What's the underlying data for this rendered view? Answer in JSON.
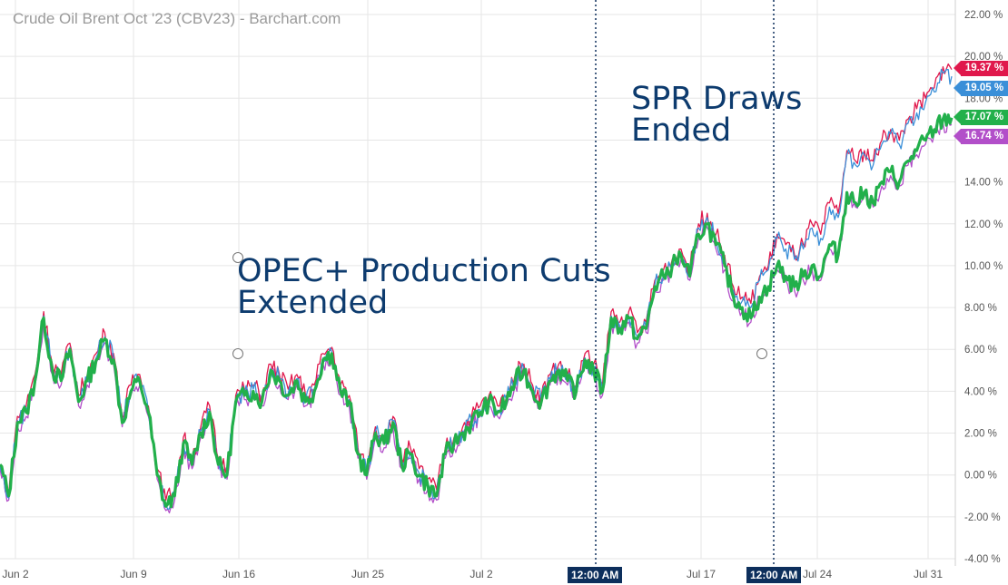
{
  "title": "Crude Oil Brent Oct '23 (CBV23) - Barchart.com",
  "annotations": {
    "opec": [
      "OPEC+ Production Cuts",
      "Extended"
    ],
    "spr": [
      "SPR Draws",
      "Ended"
    ]
  },
  "vline_labels": [
    "12:00 AM",
    "12:00 AM"
  ],
  "colors": {
    "series_red": "#e0184c",
    "series_blue": "#3a8fd8",
    "series_green": "#22b04b",
    "series_purple": "#b24fc9",
    "annotation_text": "#0d3b6e",
    "vline": "#0d2f5c",
    "grid": "#e6e6e6"
  },
  "chart_data": {
    "type": "line",
    "title": "Crude Oil Brent Oct '23 (CBV23) - Barchart.com",
    "x_tick_labels": [
      "Jun 2",
      "Jun 9",
      "Jun 16",
      "Jun 25",
      "Jul 2",
      "Jul 17",
      "Jul 24",
      "Jul 31"
    ],
    "y_tick_labels": [
      "-4.00 %",
      "-2.00 %",
      "0.00 %",
      "2.00 %",
      "4.00 %",
      "6.00 %",
      "8.00 %",
      "10.00 %",
      "12.00 %",
      "14.00 %",
      "16.00 %",
      "18.00 %",
      "20.00 %",
      "22.00 %"
    ],
    "ylim": [
      -4,
      22
    ],
    "y_unit": "%",
    "grid": true,
    "last_values": [
      {
        "label": "19.37 %",
        "value": 19.37,
        "color": "#e0184c"
      },
      {
        "label": "19.05 %",
        "value": 19.05,
        "color": "#3a8fd8"
      },
      {
        "label": "17.07 %",
        "value": 17.07,
        "color": "#22b04b"
      },
      {
        "label": "16.74 %",
        "value": 16.74,
        "color": "#b24fc9"
      }
    ],
    "series": [
      {
        "color": "#22b04b",
        "values": [
          0.5,
          -1.0,
          2.5,
          3.0,
          4.5,
          7.5,
          5.0,
          4.5,
          6.0,
          3.5,
          4.5,
          5.5,
          6.5,
          5.5,
          2.5,
          4.0,
          4.5,
          3.0,
          0.0,
          -1.5,
          -1.0,
          1.5,
          0.5,
          2.0,
          3.0,
          0.5,
          0.0,
          3.5,
          3.8,
          4.0,
          3.5,
          5.0,
          4.5,
          3.8,
          4.5,
          3.5,
          4.0,
          5.5,
          5.8,
          4.0,
          3.5,
          1.0,
          0.0,
          2.0,
          1.5,
          2.5,
          0.5,
          1.0,
          0.0,
          -0.5,
          -1.0,
          1.0,
          1.5,
          2.0,
          2.5,
          3.0,
          3.5,
          3.0,
          3.5,
          4.5,
          5.0,
          4.0,
          3.5,
          4.5,
          5.0,
          4.5,
          4.0,
          5.5,
          5.0,
          4.0,
          7.5,
          7.0,
          7.5,
          6.5,
          7.0,
          9.0,
          9.5,
          10.0,
          10.5,
          9.5,
          11.5,
          12.0,
          11.0,
          10.0,
          8.5,
          8.0,
          7.5,
          8.5,
          9.0,
          10.0,
          9.5,
          9.0,
          9.5,
          10.0,
          9.5,
          11.0,
          10.5,
          13.5,
          13.0,
          13.5,
          13.0,
          14.0,
          14.5,
          14.0,
          15.0,
          15.5,
          16.0,
          16.5,
          17.0,
          17.07
        ]
      },
      {
        "color": "#e0184c",
        "values": [
          0.5,
          -1.0,
          2.8,
          3.3,
          4.8,
          7.8,
          5.3,
          4.8,
          6.3,
          3.8,
          4.8,
          5.8,
          6.8,
          5.8,
          2.8,
          4.3,
          4.8,
          3.3,
          0.3,
          -1.2,
          -0.7,
          1.8,
          0.8,
          2.3,
          3.3,
          0.8,
          0.3,
          3.8,
          4.1,
          4.3,
          3.8,
          5.3,
          4.8,
          4.1,
          4.8,
          3.8,
          4.3,
          5.8,
          6.1,
          4.3,
          3.8,
          1.3,
          0.3,
          2.3,
          1.8,
          2.8,
          0.8,
          1.3,
          0.3,
          -0.2,
          -0.7,
          1.3,
          1.8,
          2.3,
          2.8,
          3.3,
          3.8,
          3.3,
          3.8,
          4.8,
          5.3,
          4.3,
          3.8,
          4.8,
          5.3,
          4.8,
          4.3,
          5.8,
          5.3,
          4.3,
          7.8,
          7.3,
          7.8,
          6.8,
          7.3,
          9.3,
          9.8,
          10.3,
          10.8,
          9.8,
          12.0,
          12.5,
          11.5,
          10.5,
          9.0,
          8.5,
          8.2,
          9.5,
          10.0,
          11.5,
          11.0,
          10.5,
          11.0,
          12.0,
          11.5,
          13.0,
          12.5,
          15.5,
          15.0,
          15.5,
          15.0,
          16.0,
          16.5,
          16.0,
          17.0,
          17.5,
          18.0,
          18.5,
          19.5,
          19.37
        ]
      },
      {
        "color": "#3a8fd8",
        "values": [
          0.4,
          -1.1,
          2.6,
          3.1,
          4.6,
          7.6,
          5.1,
          4.6,
          6.1,
          3.6,
          4.6,
          5.6,
          6.6,
          5.6,
          2.6,
          4.1,
          4.6,
          3.1,
          0.1,
          -1.4,
          -0.9,
          1.6,
          0.6,
          2.1,
          3.1,
          0.6,
          0.1,
          3.6,
          3.9,
          4.1,
          3.6,
          5.1,
          4.6,
          3.9,
          4.6,
          3.6,
          4.1,
          5.6,
          5.9,
          4.1,
          3.6,
          1.1,
          0.1,
          2.1,
          1.6,
          2.6,
          0.6,
          1.1,
          0.1,
          -0.4,
          -0.9,
          1.1,
          1.6,
          2.1,
          2.6,
          3.1,
          3.6,
          3.1,
          3.6,
          4.6,
          5.1,
          4.1,
          3.6,
          4.6,
          5.1,
          4.6,
          4.1,
          5.6,
          5.1,
          4.1,
          7.6,
          7.1,
          7.6,
          6.6,
          7.1,
          9.1,
          9.6,
          10.1,
          10.6,
          9.6,
          11.8,
          12.3,
          11.3,
          10.3,
          8.8,
          8.3,
          8.0,
          9.3,
          9.8,
          11.3,
          10.8,
          10.3,
          10.8,
          11.8,
          11.3,
          12.8,
          12.3,
          15.3,
          14.8,
          15.3,
          14.8,
          15.8,
          16.3,
          15.8,
          16.8,
          17.3,
          17.8,
          18.3,
          19.2,
          19.05
        ]
      },
      {
        "color": "#b24fc9",
        "values": [
          0.3,
          -1.2,
          2.3,
          2.8,
          4.3,
          7.3,
          4.8,
          4.3,
          5.8,
          3.3,
          4.3,
          5.3,
          6.3,
          5.3,
          2.3,
          3.8,
          4.3,
          2.8,
          -0.2,
          -1.7,
          -1.2,
          1.3,
          0.3,
          1.8,
          2.8,
          0.3,
          -0.2,
          3.3,
          3.6,
          3.8,
          3.3,
          4.8,
          4.3,
          3.6,
          4.3,
          3.3,
          3.8,
          5.3,
          5.6,
          3.8,
          3.3,
          0.8,
          -0.2,
          1.8,
          1.3,
          2.3,
          0.3,
          0.8,
          -0.2,
          -0.7,
          -1.2,
          0.8,
          1.3,
          1.8,
          2.3,
          2.8,
          3.3,
          2.8,
          3.3,
          4.3,
          4.8,
          3.8,
          3.3,
          4.3,
          4.8,
          4.3,
          3.8,
          5.3,
          4.8,
          3.8,
          7.3,
          6.8,
          7.3,
          6.3,
          6.8,
          8.8,
          9.3,
          9.8,
          10.3,
          9.3,
          11.3,
          11.8,
          10.8,
          9.8,
          8.3,
          7.8,
          7.3,
          8.3,
          8.8,
          9.8,
          9.3,
          8.8,
          9.3,
          9.8,
          9.3,
          10.8,
          10.3,
          13.3,
          12.8,
          13.3,
          12.8,
          13.8,
          14.3,
          13.8,
          14.8,
          15.3,
          15.8,
          16.3,
          16.8,
          16.74
        ]
      }
    ]
  }
}
